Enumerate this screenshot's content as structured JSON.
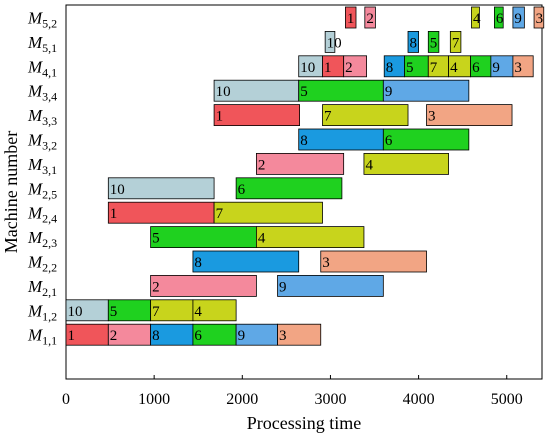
{
  "chart_data": {
    "type": "gantt",
    "xlabel": "Processing time",
    "ylabel": "Machine number",
    "xlim": [
      0,
      5400
    ],
    "xticks": [
      0,
      1000,
      2000,
      3000,
      4000,
      5000
    ],
    "colors": {
      "1": "#f0555a",
      "2": "#f4899c",
      "3": "#f2a584",
      "4": "#c8d41c",
      "5": "#1fd11f",
      "6": "#1fd11f",
      "7": "#c8d41c",
      "8": "#1a9ae0",
      "9": "#5fa8e6",
      "10": "#b4d0d7"
    },
    "machines": [
      {
        "main": "M",
        "sub": "5,2",
        "ops": [
          {
            "job": "1",
            "start": 3170,
            "end": 3290
          },
          {
            "job": "2",
            "start": 3390,
            "end": 3510
          },
          {
            "job": "4",
            "start": 4600,
            "end": 4690
          },
          {
            "job": "6",
            "start": 4860,
            "end": 4960
          },
          {
            "job": "9",
            "start": 5070,
            "end": 5200
          },
          {
            "job": "3",
            "start": 5310,
            "end": 5420
          }
        ]
      },
      {
        "main": "M",
        "sub": "5,1",
        "ops": [
          {
            "job": "10",
            "start": 2940,
            "end": 3050
          },
          {
            "job": "8",
            "start": 3880,
            "end": 4000
          },
          {
            "job": "5",
            "start": 4110,
            "end": 4230
          },
          {
            "job": "7",
            "start": 4360,
            "end": 4480
          }
        ]
      },
      {
        "main": "M",
        "sub": "4,1",
        "ops": [
          {
            "job": "10",
            "start": 2640,
            "end": 2910
          },
          {
            "job": "1",
            "start": 2910,
            "end": 3150
          },
          {
            "job": "2",
            "start": 3150,
            "end": 3410
          },
          {
            "job": "8",
            "start": 3610,
            "end": 3840
          },
          {
            "job": "5",
            "start": 3840,
            "end": 4110
          },
          {
            "job": "7",
            "start": 4110,
            "end": 4340
          },
          {
            "job": "4",
            "start": 4340,
            "end": 4590
          },
          {
            "job": "6",
            "start": 4590,
            "end": 4820
          },
          {
            "job": "9",
            "start": 4820,
            "end": 5070
          },
          {
            "job": "3",
            "start": 5070,
            "end": 5300
          }
        ]
      },
      {
        "main": "M",
        "sub": "3,4",
        "ops": [
          {
            "job": "10",
            "start": 1680,
            "end": 2640
          },
          {
            "job": "5",
            "start": 2640,
            "end": 3600
          },
          {
            "job": "9",
            "start": 3600,
            "end": 4570
          }
        ]
      },
      {
        "main": "M",
        "sub": "3,3",
        "ops": [
          {
            "job": "1",
            "start": 1680,
            "end": 2650
          },
          {
            "job": "7",
            "start": 2910,
            "end": 3880
          },
          {
            "job": "3",
            "start": 4090,
            "end": 5060
          }
        ]
      },
      {
        "main": "M",
        "sub": "3,2",
        "ops": [
          {
            "job": "8",
            "start": 2640,
            "end": 3600
          },
          {
            "job": "6",
            "start": 3600,
            "end": 4570
          }
        ]
      },
      {
        "main": "M",
        "sub": "3,1",
        "ops": [
          {
            "job": "2",
            "start": 2160,
            "end": 3150
          },
          {
            "job": "4",
            "start": 3380,
            "end": 4340
          }
        ]
      },
      {
        "main": "M",
        "sub": "2,5",
        "ops": [
          {
            "job": "10",
            "start": 480,
            "end": 1680
          },
          {
            "job": "6",
            "start": 1930,
            "end": 3130
          }
        ]
      },
      {
        "main": "M",
        "sub": "2,4",
        "ops": [
          {
            "job": "1",
            "start": 480,
            "end": 1680
          },
          {
            "job": "7",
            "start": 1680,
            "end": 2910
          }
        ]
      },
      {
        "main": "M",
        "sub": "2,3",
        "ops": [
          {
            "job": "5",
            "start": 960,
            "end": 2160
          },
          {
            "job": "4",
            "start": 2160,
            "end": 3380
          }
        ]
      },
      {
        "main": "M",
        "sub": "2,2",
        "ops": [
          {
            "job": "8",
            "start": 1440,
            "end": 2640
          },
          {
            "job": "3",
            "start": 2890,
            "end": 4090
          }
        ]
      },
      {
        "main": "M",
        "sub": "2,1",
        "ops": [
          {
            "job": "2",
            "start": 960,
            "end": 2160
          },
          {
            "job": "9",
            "start": 2400,
            "end": 3600
          }
        ]
      },
      {
        "main": "M",
        "sub": "1,2",
        "ops": [
          {
            "job": "10",
            "start": 0,
            "end": 480
          },
          {
            "job": "5",
            "start": 480,
            "end": 960
          },
          {
            "job": "7",
            "start": 960,
            "end": 1440
          },
          {
            "job": "4",
            "start": 1440,
            "end": 1930
          }
        ]
      },
      {
        "main": "M",
        "sub": "1,1",
        "ops": [
          {
            "job": "1",
            "start": 0,
            "end": 480
          },
          {
            "job": "2",
            "start": 480,
            "end": 960
          },
          {
            "job": "8",
            "start": 960,
            "end": 1440
          },
          {
            "job": "6",
            "start": 1440,
            "end": 1930
          },
          {
            "job": "9",
            "start": 1930,
            "end": 2400
          },
          {
            "job": "3",
            "start": 2400,
            "end": 2890
          }
        ]
      }
    ]
  }
}
